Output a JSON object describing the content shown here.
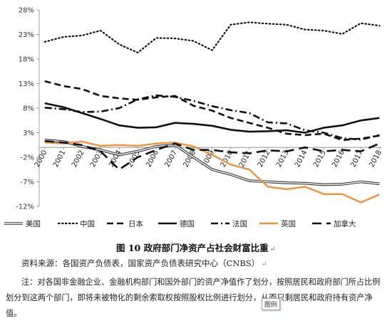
{
  "chart_data": {
    "type": "line",
    "x": [
      "2000",
      "2001",
      "2002",
      "2003",
      "2004",
      "2005",
      "2006",
      "2007",
      "2008",
      "2009",
      "2010",
      "2011",
      "2012",
      "2013",
      "2014",
      "2015",
      "2016",
      "2017",
      "2018"
    ],
    "ylim": [
      -12,
      28
    ],
    "yticks": [
      -12,
      -7,
      -2,
      3,
      8,
      13,
      18,
      23,
      28
    ],
    "ytick_labels": [
      "-12%",
      "-7%",
      "-2%",
      "3%",
      "8%",
      "13%",
      "18%",
      "23%",
      "28%"
    ],
    "legend_position": "bottom",
    "grid": false,
    "series": [
      {
        "name": "美国",
        "style": "double",
        "color": "#333333",
        "values": [
          1.5,
          1.2,
          0.2,
          -0.5,
          -1.5,
          -0.8,
          0.2,
          0.5,
          -2.0,
          -4.5,
          -5.5,
          -6.8,
          -7.0,
          -7.2,
          -7.3,
          -7.6,
          -7.5,
          -7.0,
          -7.4
        ]
      },
      {
        "name": "中国",
        "style": "dotted",
        "color": "#111111",
        "values": [
          21.5,
          22.5,
          22.8,
          23.8,
          21.0,
          19.3,
          22.3,
          22.2,
          21.7,
          19.8,
          25.0,
          25.5,
          25.2,
          25.0,
          24.0,
          23.8,
          23.1,
          25.3,
          24.8
        ]
      },
      {
        "name": "日本",
        "style": "dash",
        "color": "#111111",
        "values": [
          13.5,
          12.5,
          11.9,
          10.5,
          10.0,
          9.7,
          10.2,
          10.5,
          8.5,
          7.5,
          6.0,
          5.0,
          4.0,
          2.8,
          2.5,
          2.8,
          1.5,
          1.8,
          2.4
        ]
      },
      {
        "name": "德国",
        "style": "solid",
        "color": "#111111",
        "values": [
          9.0,
          8.2,
          7.0,
          5.8,
          4.5,
          4.0,
          4.1,
          5.0,
          4.8,
          4.4,
          3.6,
          3.2,
          3.3,
          3.5,
          3.0,
          4.0,
          4.5,
          5.5,
          6.0
        ]
      },
      {
        "name": "法国",
        "style": "dashdot",
        "color": "#111111",
        "values": [
          8.1,
          7.8,
          7.2,
          7.3,
          8.0,
          9.8,
          10.6,
          10.3,
          9.5,
          8.4,
          7.6,
          7.0,
          5.1,
          4.9,
          3.5,
          3.0,
          1.9,
          1.6,
          2.5
        ]
      },
      {
        "name": "英国",
        "style": "solid",
        "color": "#f0913c",
        "values": [
          1.0,
          0.8,
          1.2,
          0.3,
          0.5,
          0.3,
          0.8,
          1.0,
          0.2,
          -1.5,
          -3.5,
          -4.5,
          -8.0,
          -8.5,
          -8.0,
          -9.5,
          -9.5,
          -11.2,
          -9.6
        ]
      },
      {
        "name": "加拿大",
        "style": "longdash",
        "color": "#111111",
        "values": [
          1.3,
          1.0,
          0.5,
          -0.8,
          -4.5,
          -2.0,
          -0.5,
          0.8,
          -0.5,
          -0.5,
          -1.0,
          -1.2,
          -0.6,
          -0.8,
          0.0,
          -0.8,
          -0.5,
          -0.8,
          0.8
        ]
      }
    ]
  },
  "caption": "图 10   政府部门净资产占社会财富比重",
  "source": "资料来源：各国资产负债表，国家资产负债表研究中心（CNBS）",
  "note": "注：对各国非金融企业、金融机构部门和国外部门的资产净值作了划分，按照居民和政府部门所占比例划分到这两个部门，即将未被物化的剩余索取权按照股权比例进行划分，从而只剩居民和政府持有资产净值。",
  "tooltip": "图例"
}
